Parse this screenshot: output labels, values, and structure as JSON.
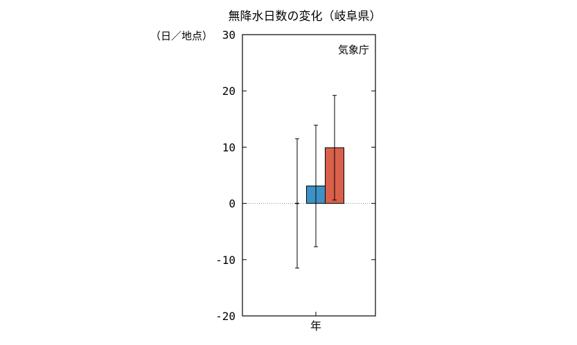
{
  "chart_data": {
    "type": "bar",
    "title": "無降水日数の変化（岐阜県）",
    "ylabel": "（日／地点）",
    "source": "気象庁",
    "categories": [
      "年"
    ],
    "ylim": [
      -20,
      30
    ],
    "yticks": [
      -20,
      -10,
      0,
      10,
      20,
      30
    ],
    "zero_line": "dotted",
    "grid": false,
    "series": [
      {
        "color": "#ffffff",
        "values": [
          0
        ],
        "error_low": [
          -11.5
        ],
        "error_high": [
          11.5
        ]
      },
      {
        "color": "#3e91c5",
        "values": [
          3.1
        ],
        "error_low": [
          -7.7
        ],
        "error_high": [
          13.9
        ]
      },
      {
        "color": "#d9604a",
        "values": [
          9.9
        ],
        "error_low": [
          0.6
        ],
        "error_high": [
          19.2
        ]
      }
    ]
  }
}
